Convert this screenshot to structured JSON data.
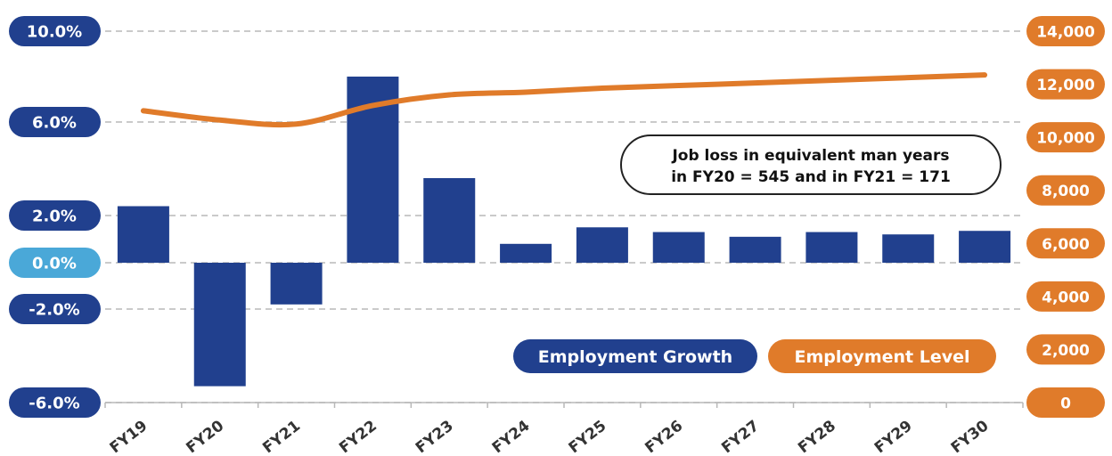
{
  "chart_data": {
    "type": "bar",
    "categories": [
      "FY19",
      "FY20",
      "FY21",
      "FY22",
      "FY23",
      "FY24",
      "FY25",
      "FY26",
      "FY27",
      "FY28",
      "FY29",
      "FY30"
    ],
    "series": [
      {
        "name": "Employment Growth",
        "type": "bar",
        "axis": "left",
        "values": [
          2.4,
          -5.3,
          -1.8,
          8.0,
          3.6,
          0.8,
          1.5,
          1.3,
          1.1,
          1.3,
          1.2,
          1.35
        ]
      },
      {
        "name": "Employment Level",
        "type": "line",
        "axis": "right",
        "values": [
          11000,
          10650,
          10500,
          11200,
          11600,
          11700,
          11850,
          11950,
          12050,
          12150,
          12250,
          12350
        ]
      }
    ],
    "left_axis": {
      "ticks": [
        {
          "value": 10,
          "label": "10.0%"
        },
        {
          "value": 6,
          "label": "6.0%"
        },
        {
          "value": 2,
          "label": "2.0%"
        },
        {
          "value": 0,
          "label": "0.0%",
          "highlight": true
        },
        {
          "value": -2,
          "label": "-2.0%"
        },
        {
          "value": -6,
          "label": "-6.0%"
        }
      ]
    },
    "right_axis": {
      "ticks": [
        "0",
        "2,000",
        "4,000",
        "6,000",
        "8,000",
        "10,000",
        "12,000",
        "14,000"
      ],
      "range": [
        0,
        14000
      ]
    },
    "annotation": {
      "line1": "Job loss in equivalent man years",
      "line2": "in FY20 = 545 and in FY21 = 171"
    },
    "legend": {
      "growth_label": "Employment Growth",
      "level_label": "Employment Level"
    },
    "colors": {
      "bar": "#21408e",
      "line": "#e07b2a",
      "left_pill": "#21408e",
      "zero_pill": "#4aa8d8",
      "right_pill": "#e07b2a",
      "grid": "#b8b8b8",
      "axis_text": "#333333"
    }
  }
}
